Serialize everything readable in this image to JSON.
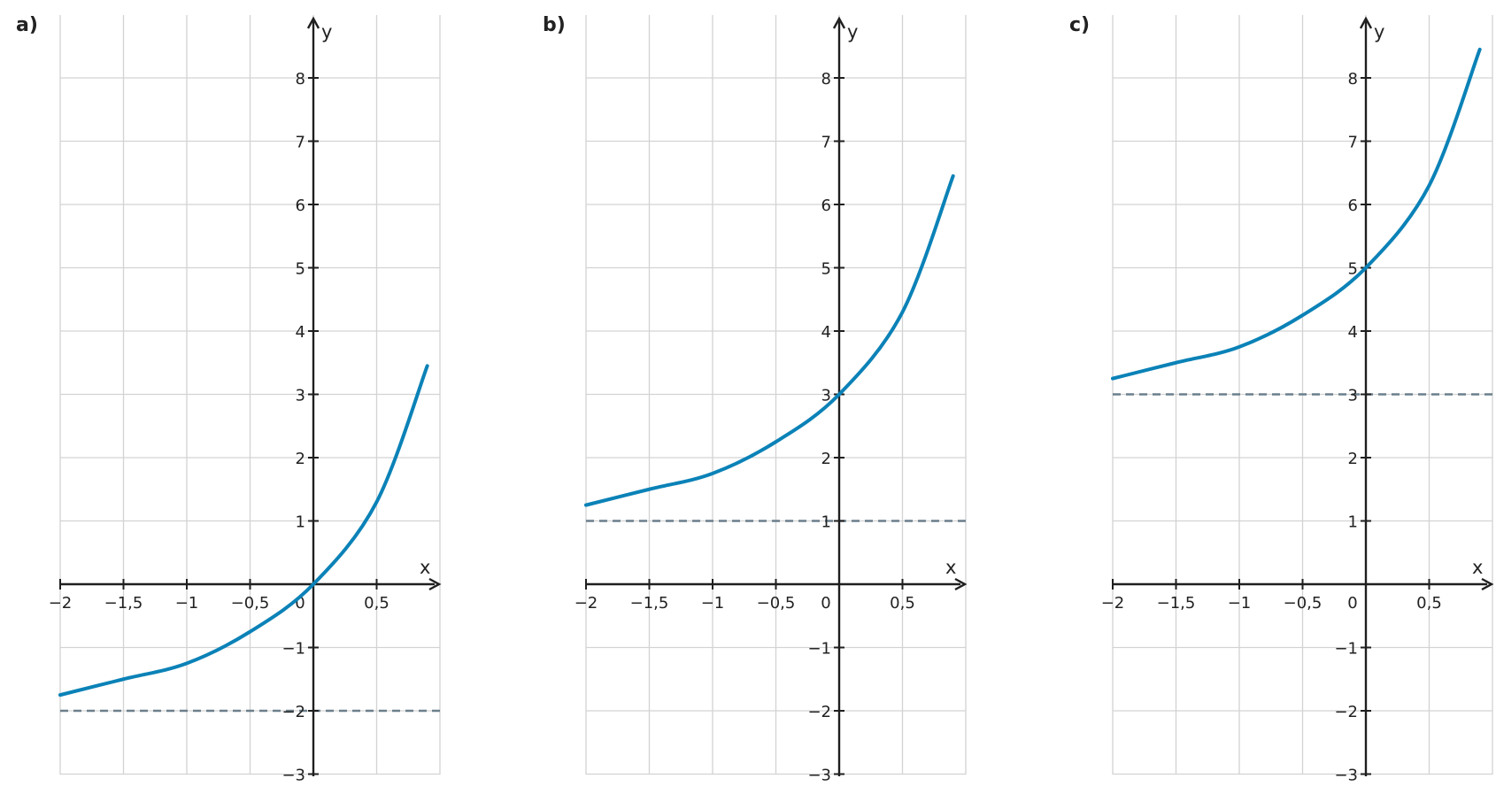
{
  "chart_data": [
    {
      "type": "line",
      "panel_label": "a)",
      "xlabel": "x",
      "ylabel": "y",
      "xlim": [
        -2,
        1
      ],
      "ylim": [
        -3,
        9
      ],
      "grid": true,
      "x_ticks": [
        {
          "value": -2,
          "label": "−2"
        },
        {
          "value": -1.5,
          "label": "−1,5"
        },
        {
          "value": -1,
          "label": "−1"
        },
        {
          "value": -0.5,
          "label": "−0,5"
        },
        {
          "value": 0,
          "label": "0"
        },
        {
          "value": 0.5,
          "label": "0,5"
        }
      ],
      "y_ticks": [
        {
          "value": 8,
          "label": "8"
        },
        {
          "value": 7,
          "label": "7"
        },
        {
          "value": 6,
          "label": "6"
        },
        {
          "value": 5,
          "label": "5"
        },
        {
          "value": 4,
          "label": "4"
        },
        {
          "value": 3,
          "label": "3"
        },
        {
          "value": 2,
          "label": "2"
        },
        {
          "value": 1,
          "label": "1"
        },
        {
          "value": -1,
          "label": "−1"
        },
        {
          "value": -2,
          "label": "−2"
        },
        {
          "value": -3,
          "label": "−3"
        }
      ],
      "series": [
        {
          "x": [
            -2,
            -1.5,
            -1,
            -0.5,
            0,
            0.5,
            0.9
          ],
          "y": [
            -1.75,
            -1.5,
            -1.25,
            -0.75,
            0,
            1.3,
            3.45
          ]
        }
      ],
      "asymptote_y": -2,
      "colors": {
        "curve": "#0b82b7",
        "asymptote": "#6b7f8c",
        "grid": "#d3d3d3",
        "axis": "#1f1f1f"
      }
    },
    {
      "type": "line",
      "panel_label": "b)",
      "xlabel": "x",
      "ylabel": "y",
      "xlim": [
        -2,
        1
      ],
      "ylim": [
        -3,
        9
      ],
      "grid": true,
      "x_ticks": [
        {
          "value": -2,
          "label": "−2"
        },
        {
          "value": -1.5,
          "label": "−1,5"
        },
        {
          "value": -1,
          "label": "−1"
        },
        {
          "value": -0.5,
          "label": "−0,5"
        },
        {
          "value": 0,
          "label": "0"
        },
        {
          "value": 0.5,
          "label": "0,5"
        }
      ],
      "y_ticks": [
        {
          "value": 8,
          "label": "8"
        },
        {
          "value": 7,
          "label": "7"
        },
        {
          "value": 6,
          "label": "6"
        },
        {
          "value": 5,
          "label": "5"
        },
        {
          "value": 4,
          "label": "4"
        },
        {
          "value": 3,
          "label": "3"
        },
        {
          "value": 2,
          "label": "2"
        },
        {
          "value": 1,
          "label": "1"
        },
        {
          "value": -1,
          "label": "−1"
        },
        {
          "value": -2,
          "label": "−2"
        },
        {
          "value": -3,
          "label": "−3"
        }
      ],
      "series": [
        {
          "x": [
            -2,
            -1.5,
            -1,
            -0.5,
            0,
            0.5,
            0.9
          ],
          "y": [
            1.25,
            1.5,
            1.75,
            2.25,
            3,
            4.3,
            6.45
          ]
        }
      ],
      "asymptote_y": 1,
      "colors": {
        "curve": "#0b82b7",
        "asymptote": "#6b7f8c",
        "grid": "#d3d3d3",
        "axis": "#1f1f1f"
      }
    },
    {
      "type": "line",
      "panel_label": "c)",
      "xlabel": "x",
      "ylabel": "y",
      "xlim": [
        -2,
        1
      ],
      "ylim": [
        -3,
        9
      ],
      "grid": true,
      "x_ticks": [
        {
          "value": -2,
          "label": "−2"
        },
        {
          "value": -1.5,
          "label": "−1,5"
        },
        {
          "value": -1,
          "label": "−1"
        },
        {
          "value": -0.5,
          "label": "−0,5"
        },
        {
          "value": 0,
          "label": "0"
        },
        {
          "value": 0.5,
          "label": "0,5"
        }
      ],
      "y_ticks": [
        {
          "value": 8,
          "label": "8"
        },
        {
          "value": 7,
          "label": "7"
        },
        {
          "value": 6,
          "label": "6"
        },
        {
          "value": 5,
          "label": "5"
        },
        {
          "value": 4,
          "label": "4"
        },
        {
          "value": 3,
          "label": "3"
        },
        {
          "value": 2,
          "label": "2"
        },
        {
          "value": 1,
          "label": "1"
        },
        {
          "value": -1,
          "label": "−1"
        },
        {
          "value": -2,
          "label": "−2"
        },
        {
          "value": -3,
          "label": "−3"
        }
      ],
      "series": [
        {
          "x": [
            -2,
            -1.5,
            -1,
            -0.5,
            0,
            0.5,
            0.9
          ],
          "y": [
            3.25,
            3.5,
            3.75,
            4.25,
            5,
            6.3,
            8.45
          ]
        }
      ],
      "asymptote_y": 3,
      "colors": {
        "curve": "#0b82b7",
        "asymptote": "#6b7f8c",
        "grid": "#d3d3d3",
        "axis": "#1f1f1f"
      }
    }
  ]
}
